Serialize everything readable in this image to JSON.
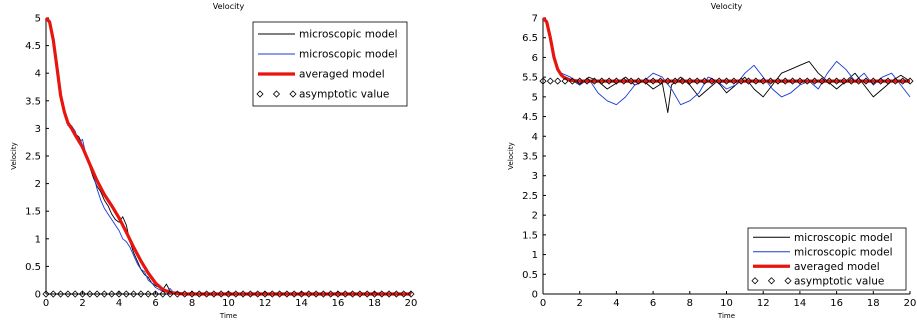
{
  "chart_data": [
    {
      "type": "line",
      "title": "Velocity",
      "xlabel": "Time",
      "ylabel": "Velocity",
      "xlim": [
        0,
        20
      ],
      "ylim": [
        0,
        5
      ],
      "xticks": [
        0,
        2,
        4,
        6,
        8,
        10,
        12,
        14,
        16,
        18,
        20
      ],
      "xtick_labels": [
        "0",
        "2",
        "4",
        "6",
        "8",
        "10",
        "12",
        "14",
        "16",
        "18",
        "20"
      ],
      "yticks": [
        0,
        0.5,
        1,
        1.5,
        2,
        2.5,
        3,
        3.5,
        4,
        4.5,
        5
      ],
      "ytick_labels": [
        "0",
        "0.5",
        "1",
        "1.5",
        "2",
        "2.5",
        "3",
        "3.5",
        "4",
        "4.5",
        "5"
      ],
      "grid": false,
      "legend_position": "top-right",
      "series": [
        {
          "name": "microscopic model",
          "color": "#000000",
          "style": "line",
          "x": [
            0,
            0.2,
            0.4,
            0.6,
            0.8,
            1.0,
            1.2,
            1.4,
            1.6,
            1.8,
            2.0,
            2.2,
            2.4,
            2.6,
            2.8,
            3.0,
            3.2,
            3.4,
            3.6,
            3.8,
            4.0,
            4.2,
            4.4,
            4.6,
            4.8,
            5.0,
            5.2,
            5.4,
            5.6,
            5.8,
            6.0,
            6.2,
            6.4,
            6.6,
            6.8,
            7.0,
            7.4,
            8,
            10,
            12,
            14,
            16,
            18,
            20
          ],
          "y": [
            5.0,
            4.95,
            4.6,
            4.1,
            3.6,
            3.3,
            3.1,
            3.0,
            2.9,
            2.85,
            2.7,
            2.55,
            2.3,
            2.1,
            1.95,
            1.85,
            1.7,
            1.6,
            1.45,
            1.35,
            1.3,
            1.4,
            1.25,
            0.95,
            0.75,
            0.6,
            0.45,
            0.35,
            0.3,
            0.2,
            0.15,
            0.12,
            0.08,
            0.18,
            0.05,
            0.02,
            0.0,
            0.0,
            0.0,
            0.0,
            0.0,
            0.0,
            0.0,
            0.0
          ]
        },
        {
          "name": "microscopic model",
          "color": "#1a3bd8",
          "style": "line",
          "x": [
            0,
            0.2,
            0.4,
            0.6,
            0.8,
            1.0,
            1.2,
            1.4,
            1.6,
            1.8,
            2.0,
            2.2,
            2.4,
            2.6,
            2.8,
            3.0,
            3.2,
            3.4,
            3.6,
            3.8,
            4.0,
            4.2,
            4.4,
            4.6,
            4.8,
            5.0,
            5.2,
            5.4,
            5.6,
            5.8,
            6.0,
            6.2,
            6.4,
            6.6,
            6.8,
            7.0,
            7.4,
            8,
            10,
            12,
            14,
            16,
            18,
            20
          ],
          "y": [
            5.0,
            4.95,
            4.6,
            4.1,
            3.6,
            3.3,
            3.05,
            3.05,
            2.95,
            2.75,
            2.8,
            2.5,
            2.35,
            2.15,
            1.9,
            1.7,
            1.55,
            1.45,
            1.35,
            1.25,
            1.15,
            1.0,
            0.95,
            0.85,
            0.7,
            0.55,
            0.45,
            0.4,
            0.25,
            0.2,
            0.12,
            0.08,
            0.05,
            0.03,
            0.1,
            0.02,
            0.0,
            0.0,
            0.0,
            0.0,
            0.0,
            0.0,
            0.0,
            0.0
          ]
        },
        {
          "name": "averaged model",
          "color": "#e8140e",
          "style": "thick-line",
          "x": [
            0,
            0.2,
            0.4,
            0.6,
            0.8,
            1.0,
            1.2,
            1.4,
            1.6,
            1.8,
            2.0,
            2.4,
            2.8,
            3.2,
            3.6,
            4.0,
            4.4,
            4.8,
            5.2,
            5.6,
            6.0,
            6.4,
            6.8,
            7.2,
            7.6,
            8,
            10,
            12,
            14,
            16,
            18,
            20
          ],
          "y": [
            5.0,
            4.93,
            4.6,
            4.1,
            3.6,
            3.3,
            3.1,
            3.0,
            2.88,
            2.77,
            2.66,
            2.35,
            2.05,
            1.8,
            1.6,
            1.38,
            1.12,
            0.85,
            0.6,
            0.38,
            0.2,
            0.08,
            0.03,
            0.01,
            0.0,
            0.0,
            0.0,
            0.0,
            0.0,
            0.0,
            0.0,
            0.0
          ]
        },
        {
          "name": "asymptotic value",
          "color": "#000000",
          "style": "diamond-markers",
          "x": [
            0,
            0.4,
            0.8,
            1.2,
            1.6,
            2.0,
            2.4,
            2.8,
            3.2,
            3.6,
            4.0,
            4.4,
            4.8,
            5.2,
            5.6,
            6.0,
            6.4,
            6.8,
            7.2,
            7.6,
            8.0,
            8.4,
            8.8,
            9.2,
            9.6,
            10.0,
            10.4,
            10.8,
            11.2,
            11.6,
            12.0,
            12.4,
            12.8,
            13.2,
            13.6,
            14.0,
            14.4,
            14.8,
            15.2,
            15.6,
            16.0,
            16.4,
            16.8,
            17.2,
            17.6,
            18.0,
            18.4,
            18.8,
            19.2,
            19.6,
            20.0
          ],
          "y": [
            0,
            0,
            0,
            0,
            0,
            0,
            0,
            0,
            0,
            0,
            0,
            0,
            0,
            0,
            0,
            0,
            0,
            0,
            0,
            0,
            0,
            0,
            0,
            0,
            0,
            0,
            0,
            0,
            0,
            0,
            0,
            0,
            0,
            0,
            0,
            0,
            0,
            0,
            0,
            0,
            0,
            0,
            0,
            0,
            0,
            0,
            0,
            0,
            0,
            0,
            0
          ]
        }
      ]
    },
    {
      "type": "line",
      "title": "Velocity",
      "xlabel": "Time",
      "ylabel": "Velocity",
      "xlim": [
        0,
        20
      ],
      "ylim": [
        0,
        7
      ],
      "xticks": [
        0,
        2,
        4,
        6,
        8,
        10,
        12,
        14,
        16,
        18,
        20
      ],
      "xtick_labels": [
        "0",
        "2",
        "4",
        "6",
        "8",
        "10",
        "12",
        "14",
        "16",
        "18",
        "20"
      ],
      "yticks": [
        0,
        0.5,
        1,
        1.5,
        2,
        2.5,
        3,
        3.5,
        4,
        4.5,
        5,
        5.5,
        6,
        6.5,
        7
      ],
      "ytick_labels": [
        "0",
        "0.5",
        "1",
        "1.5",
        "2",
        "2.5",
        "3",
        "3.5",
        "4",
        "4.5",
        "5",
        "5.5",
        "6",
        "6.5",
        "7"
      ],
      "grid": false,
      "legend_position": "bottom-right",
      "series": [
        {
          "name": "microscopic model",
          "color": "#000000",
          "style": "line",
          "x": [
            0,
            0.2,
            0.4,
            0.6,
            0.8,
            1.0,
            1.5,
            2.0,
            2.5,
            3.0,
            3.5,
            4.0,
            4.5,
            5.0,
            5.5,
            6.0,
            6.5,
            6.8,
            7.0,
            7.5,
            8.0,
            8.5,
            9.0,
            9.5,
            10.0,
            10.5,
            11.0,
            11.5,
            12.0,
            12.5,
            13.0,
            13.5,
            14.0,
            14.5,
            15.0,
            15.5,
            16.0,
            16.5,
            17.0,
            17.5,
            18.0,
            18.5,
            19.0,
            19.5,
            20.0
          ],
          "y": [
            7.0,
            6.9,
            6.5,
            6.0,
            5.7,
            5.55,
            5.45,
            5.3,
            5.5,
            5.4,
            5.2,
            5.35,
            5.5,
            5.3,
            5.4,
            5.2,
            5.35,
            4.6,
            5.3,
            5.5,
            5.3,
            5.0,
            5.2,
            5.4,
            5.1,
            5.3,
            5.5,
            5.2,
            5.0,
            5.3,
            5.6,
            5.7,
            5.8,
            5.9,
            5.6,
            5.4,
            5.2,
            5.4,
            5.6,
            5.3,
            5.0,
            5.2,
            5.4,
            5.55,
            5.4
          ]
        },
        {
          "name": "microscopic model",
          "color": "#1a3bd8",
          "style": "line",
          "x": [
            0,
            0.2,
            0.4,
            0.6,
            0.8,
            1.0,
            1.5,
            2.0,
            2.5,
            3.0,
            3.5,
            4.0,
            4.5,
            5.0,
            5.5,
            6.0,
            6.5,
            7.0,
            7.5,
            8.0,
            8.5,
            9.0,
            9.5,
            10.0,
            10.5,
            11.0,
            11.5,
            12.0,
            12.5,
            13.0,
            13.5,
            14.0,
            14.5,
            15.0,
            15.5,
            16.0,
            16.5,
            17.0,
            17.5,
            18.0,
            18.5,
            19.0,
            19.5,
            20.0
          ],
          "y": [
            7.0,
            6.9,
            6.5,
            6.0,
            5.7,
            5.6,
            5.5,
            5.3,
            5.45,
            5.1,
            4.9,
            4.8,
            5.0,
            5.3,
            5.4,
            5.6,
            5.5,
            5.2,
            4.8,
            4.9,
            5.1,
            5.5,
            5.4,
            5.2,
            5.3,
            5.6,
            5.8,
            5.5,
            5.2,
            5.0,
            5.1,
            5.3,
            5.4,
            5.2,
            5.6,
            5.9,
            5.7,
            5.4,
            5.6,
            5.3,
            5.5,
            5.6,
            5.3,
            5.0
          ]
        },
        {
          "name": "averaged model",
          "color": "#e8140e",
          "style": "thick-line",
          "x": [
            0,
            0.2,
            0.4,
            0.6,
            0.8,
            1.0,
            1.2,
            1.5,
            2.0,
            3,
            4,
            6,
            8,
            10,
            12,
            14,
            16,
            18,
            20
          ],
          "y": [
            7.0,
            6.9,
            6.5,
            6.0,
            5.7,
            5.55,
            5.47,
            5.42,
            5.4,
            5.4,
            5.4,
            5.4,
            5.4,
            5.4,
            5.4,
            5.4,
            5.4,
            5.4,
            5.4
          ]
        },
        {
          "name": "asymptotic value",
          "color": "#000000",
          "style": "diamond-markers",
          "x": [
            0,
            0.4,
            0.8,
            1.2,
            1.6,
            2.0,
            2.4,
            2.8,
            3.2,
            3.6,
            4.0,
            4.4,
            4.8,
            5.2,
            5.6,
            6.0,
            6.4,
            6.8,
            7.2,
            7.6,
            8.0,
            8.4,
            8.8,
            9.2,
            9.6,
            10.0,
            10.4,
            10.8,
            11.2,
            11.6,
            12.0,
            12.4,
            12.8,
            13.2,
            13.6,
            14.0,
            14.4,
            14.8,
            15.2,
            15.6,
            16.0,
            16.4,
            16.8,
            17.2,
            17.6,
            18.0,
            18.4,
            18.8,
            19.2,
            19.6,
            20.0
          ],
          "y": [
            5.4,
            5.4,
            5.4,
            5.4,
            5.4,
            5.4,
            5.4,
            5.4,
            5.4,
            5.4,
            5.4,
            5.4,
            5.4,
            5.4,
            5.4,
            5.4,
            5.4,
            5.4,
            5.4,
            5.4,
            5.4,
            5.4,
            5.4,
            5.4,
            5.4,
            5.4,
            5.4,
            5.4,
            5.4,
            5.4,
            5.4,
            5.4,
            5.4,
            5.4,
            5.4,
            5.4,
            5.4,
            5.4,
            5.4,
            5.4,
            5.4,
            5.4,
            5.4,
            5.4,
            5.4,
            5.4,
            5.4,
            5.4,
            5.4,
            5.4,
            5.4
          ]
        }
      ]
    }
  ]
}
